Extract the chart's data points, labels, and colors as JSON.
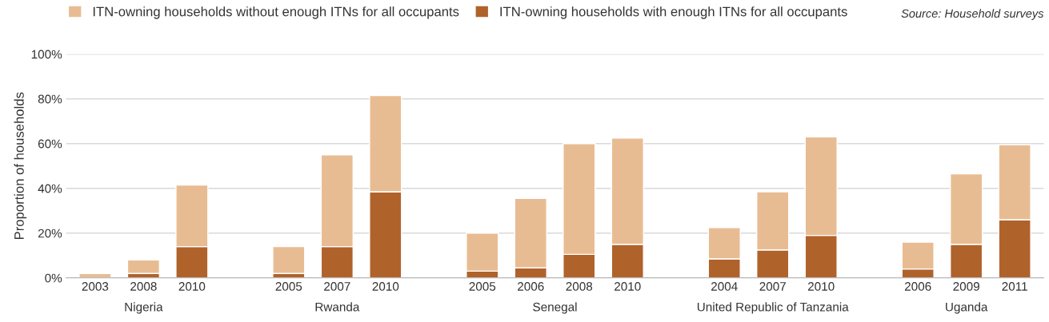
{
  "chart_data": {
    "type": "bar",
    "stacked": true,
    "ylabel": "Proportion of households",
    "categories": [
      "2003",
      "2008",
      "2010",
      null,
      "2005",
      "2007",
      "2010",
      null,
      "2005",
      "2006",
      "2008",
      "2010",
      null,
      "2004",
      "2007",
      "2010",
      null,
      "2006",
      "2009",
      "2011"
    ],
    "series": [
      {
        "name": "ITN-owning households with enough ITNs for all occupants",
        "color": "#b0622b",
        "values": [
          0,
          2,
          14,
          null,
          2,
          14,
          38.5,
          null,
          3,
          4.5,
          10.5,
          15,
          null,
          8.5,
          12.5,
          19,
          null,
          4,
          15,
          26
        ]
      },
      {
        "name": "ITN-owning households without enough ITNs for all occupants",
        "color": "#e8bc92",
        "values": [
          2,
          6,
          27.5,
          null,
          12,
          41,
          43,
          null,
          17,
          31,
          49.5,
          47.5,
          null,
          14,
          26,
          44,
          null,
          12,
          31.5,
          33.5
        ]
      }
    ],
    "ylim": [
      0,
      100
    ],
    "yticks": [
      {
        "value": 0,
        "label": "0%"
      },
      {
        "value": 20,
        "label": "20%"
      },
      {
        "value": 40,
        "label": "40%"
      },
      {
        "value": 60,
        "label": "60%"
      },
      {
        "value": 80,
        "label": "80%"
      },
      {
        "value": 100,
        "label": "100%"
      }
    ],
    "grid": "y",
    "legend": "top left",
    "annotations": [
      "Nigeria",
      "Rwanda",
      "Senegal",
      "United Republic of Tanzania",
      "Uganda",
      "Source: Household surveys"
    ]
  }
}
